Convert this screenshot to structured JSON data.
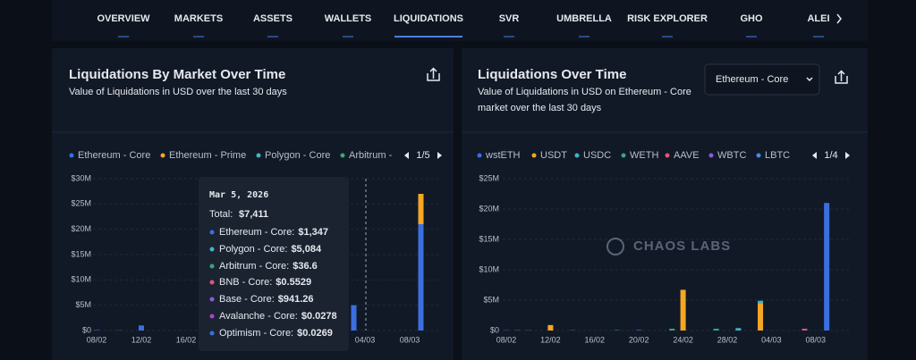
{
  "nav": {
    "items": [
      "OVERVIEW",
      "MARKETS",
      "ASSETS",
      "WALLETS",
      "LIQUIDATIONS",
      "SVR",
      "UMBRELLA",
      "RISK EXPLORER",
      "GHO",
      "ALEI"
    ],
    "active": 4
  },
  "panels": [
    {
      "title": "Liquidations By Market Over Time",
      "subtitle": "Value of Liquidations in USD over the last 30 days"
    },
    {
      "title": "Liquidations Over Time",
      "subtitle": [
        "Value of Liquidations in USD on Ethereum - Core",
        "market over the last 30 days"
      ],
      "dropdown": "Ethereum - Core"
    }
  ],
  "chart_data": [
    {
      "type": "bar",
      "stacked": true,
      "page": "1/5",
      "categories": [
        "08/02",
        null,
        null,
        null,
        "12/02",
        null,
        null,
        null,
        "16/02",
        null,
        null,
        null,
        "20/02",
        null,
        null,
        null,
        "24/02",
        null,
        null,
        null,
        "28/02",
        null,
        null,
        null,
        "04/03",
        null,
        null,
        null,
        "08/03",
        null
      ],
      "series": [
        {
          "name": "Ethereum - Core",
          "color": "#3b6fe0",
          "values": [
            100000,
            0,
            50000,
            0,
            1000000,
            0,
            0,
            0,
            0,
            0,
            0,
            0,
            0,
            0,
            0,
            0,
            0,
            0,
            0,
            0,
            0,
            0,
            0,
            5000000,
            1347,
            0,
            0,
            0,
            0,
            21000000
          ]
        },
        {
          "name": "Ethereum - Prime",
          "color": "#f5a623",
          "values": [
            0,
            0,
            0,
            0,
            0,
            0,
            0,
            0,
            0,
            0,
            0,
            0,
            0,
            0,
            0,
            0,
            0,
            0,
            0,
            0,
            0,
            0,
            0,
            0,
            0,
            0,
            0,
            0,
            0,
            6000000
          ]
        },
        {
          "name": "Polygon - Core",
          "color": "#3db5c8",
          "values": [
            0,
            0,
            0,
            0,
            0,
            0,
            0,
            0,
            0,
            0,
            0,
            0,
            0,
            0,
            0,
            0,
            0,
            0,
            0,
            0,
            0,
            0,
            0,
            0,
            5084,
            0,
            0,
            0,
            0,
            0
          ]
        },
        {
          "name": "Arbitrum -",
          "color": "#3aa57a",
          "values": [
            0,
            0,
            0,
            0,
            0,
            0,
            0,
            0,
            0,
            0,
            0,
            0,
            0,
            0,
            0,
            0,
            0,
            0,
            0,
            0,
            0,
            0,
            0,
            0,
            36.6,
            0,
            0,
            0,
            0,
            0
          ]
        }
      ],
      "ylim": [
        0,
        30000000
      ],
      "yticks": [
        {
          "value": 0,
          "label": "$0"
        },
        {
          "value": 5000000,
          "label": "$5M"
        },
        {
          "value": 10000000,
          "label": "$10M"
        },
        {
          "value": 15000000,
          "label": "$15M"
        },
        {
          "value": 20000000,
          "label": "$20M"
        },
        {
          "value": 25000000,
          "label": "$25M"
        },
        {
          "value": 30000000,
          "label": "$30M"
        }
      ],
      "grid": true
    },
    {
      "type": "bar",
      "stacked": true,
      "page": "1/4",
      "categories": [
        "08/02",
        null,
        null,
        null,
        "12/02",
        null,
        null,
        null,
        "16/02",
        null,
        null,
        null,
        "20/02",
        null,
        null,
        null,
        "24/02",
        null,
        null,
        null,
        "28/02",
        null,
        null,
        null,
        "04/03",
        null,
        null,
        null,
        "08/03",
        null
      ],
      "series": [
        {
          "name": "wstETH",
          "color": "#3b6fe0",
          "values": [
            50000,
            0,
            50000,
            0,
            0,
            0,
            0,
            0,
            0,
            0,
            0,
            0,
            0,
            0,
            0,
            0,
            0,
            0,
            0,
            0,
            0,
            0,
            0,
            0,
            0,
            0,
            0,
            0,
            0,
            21000000
          ]
        },
        {
          "name": "USDT",
          "color": "#f5a623",
          "values": [
            0,
            0,
            0,
            0,
            900000,
            0,
            0,
            0,
            0,
            0,
            0,
            0,
            0,
            0,
            0,
            0,
            6700000,
            0,
            0,
            0,
            0,
            0,
            0,
            4500000,
            0,
            0,
            0,
            0,
            0,
            0
          ]
        },
        {
          "name": "USDC",
          "color": "#3db5c8",
          "values": [
            0,
            0,
            0,
            0,
            0,
            0,
            0,
            0,
            0,
            0,
            50000,
            0,
            0,
            0,
            0,
            0,
            0,
            0,
            0,
            0,
            0,
            400000,
            0,
            400000,
            0,
            0,
            0,
            0,
            0,
            0
          ]
        },
        {
          "name": "WETH",
          "color": "#3aa57a",
          "values": [
            0,
            0,
            0,
            0,
            0,
            0,
            0,
            0,
            0,
            0,
            0,
            0,
            0,
            0,
            0,
            300000,
            0,
            0,
            0,
            300000,
            0,
            0,
            0,
            0,
            0,
            0,
            0,
            0,
            0,
            0
          ]
        },
        {
          "name": "AAVE",
          "color": "#e0557a",
          "values": [
            0,
            50000,
            0,
            0,
            0,
            0,
            0,
            0,
            0,
            0,
            0,
            0,
            0,
            0,
            0,
            0,
            0,
            0,
            0,
            0,
            0,
            0,
            0,
            0,
            0,
            0,
            0,
            300000,
            0,
            0
          ]
        },
        {
          "name": "WBTC",
          "color": "#8a5cd6",
          "values": [
            0,
            0,
            0,
            0,
            0,
            0,
            50000,
            0,
            0,
            0,
            0,
            0,
            0,
            0,
            0,
            0,
            0,
            0,
            0,
            0,
            0,
            0,
            0,
            0,
            0,
            0,
            0,
            0,
            0,
            0
          ]
        },
        {
          "name": "LBTC",
          "color": "#4a86e8",
          "values": [
            0,
            0,
            0,
            0,
            0,
            0,
            0,
            0,
            0,
            0,
            0,
            0,
            80000,
            0,
            0,
            0,
            0,
            0,
            0,
            0,
            0,
            0,
            0,
            0,
            0,
            0,
            0,
            0,
            0,
            0
          ]
        }
      ],
      "ylim": [
        0,
        25000000
      ],
      "yticks": [
        {
          "value": 0,
          "label": "$0"
        },
        {
          "value": 5000000,
          "label": "$5M"
        },
        {
          "value": 10000000,
          "label": "$10M"
        },
        {
          "value": 15000000,
          "label": "$15M"
        },
        {
          "value": 20000000,
          "label": "$20M"
        },
        {
          "value": 25000000,
          "label": "$25M"
        }
      ],
      "grid": true
    }
  ],
  "tooltip": {
    "date": "Mar 5, 2026",
    "total_label": "Total:",
    "total": "$7,411",
    "rows": [
      {
        "name": "Ethereum - Core:",
        "value": "$1,347",
        "color": "#3b6fe0"
      },
      {
        "name": "Polygon - Core:",
        "value": "$5,084",
        "color": "#3db5c8"
      },
      {
        "name": "Arbitrum - Core:",
        "value": "$36.6",
        "color": "#3aa57a"
      },
      {
        "name": "BNB - Core:",
        "value": "$0.5529",
        "color": "#e0557a"
      },
      {
        "name": "Base - Core:",
        "value": "$941.26",
        "color": "#8a5cd6"
      },
      {
        "name": "Avalanche - Core:",
        "value": "$0.0278",
        "color": "#b03fd0"
      },
      {
        "name": "Optimism - Core:",
        "value": "$0.0269",
        "color": "#3b6fe0"
      }
    ]
  },
  "watermark": "CHAOS LABS"
}
